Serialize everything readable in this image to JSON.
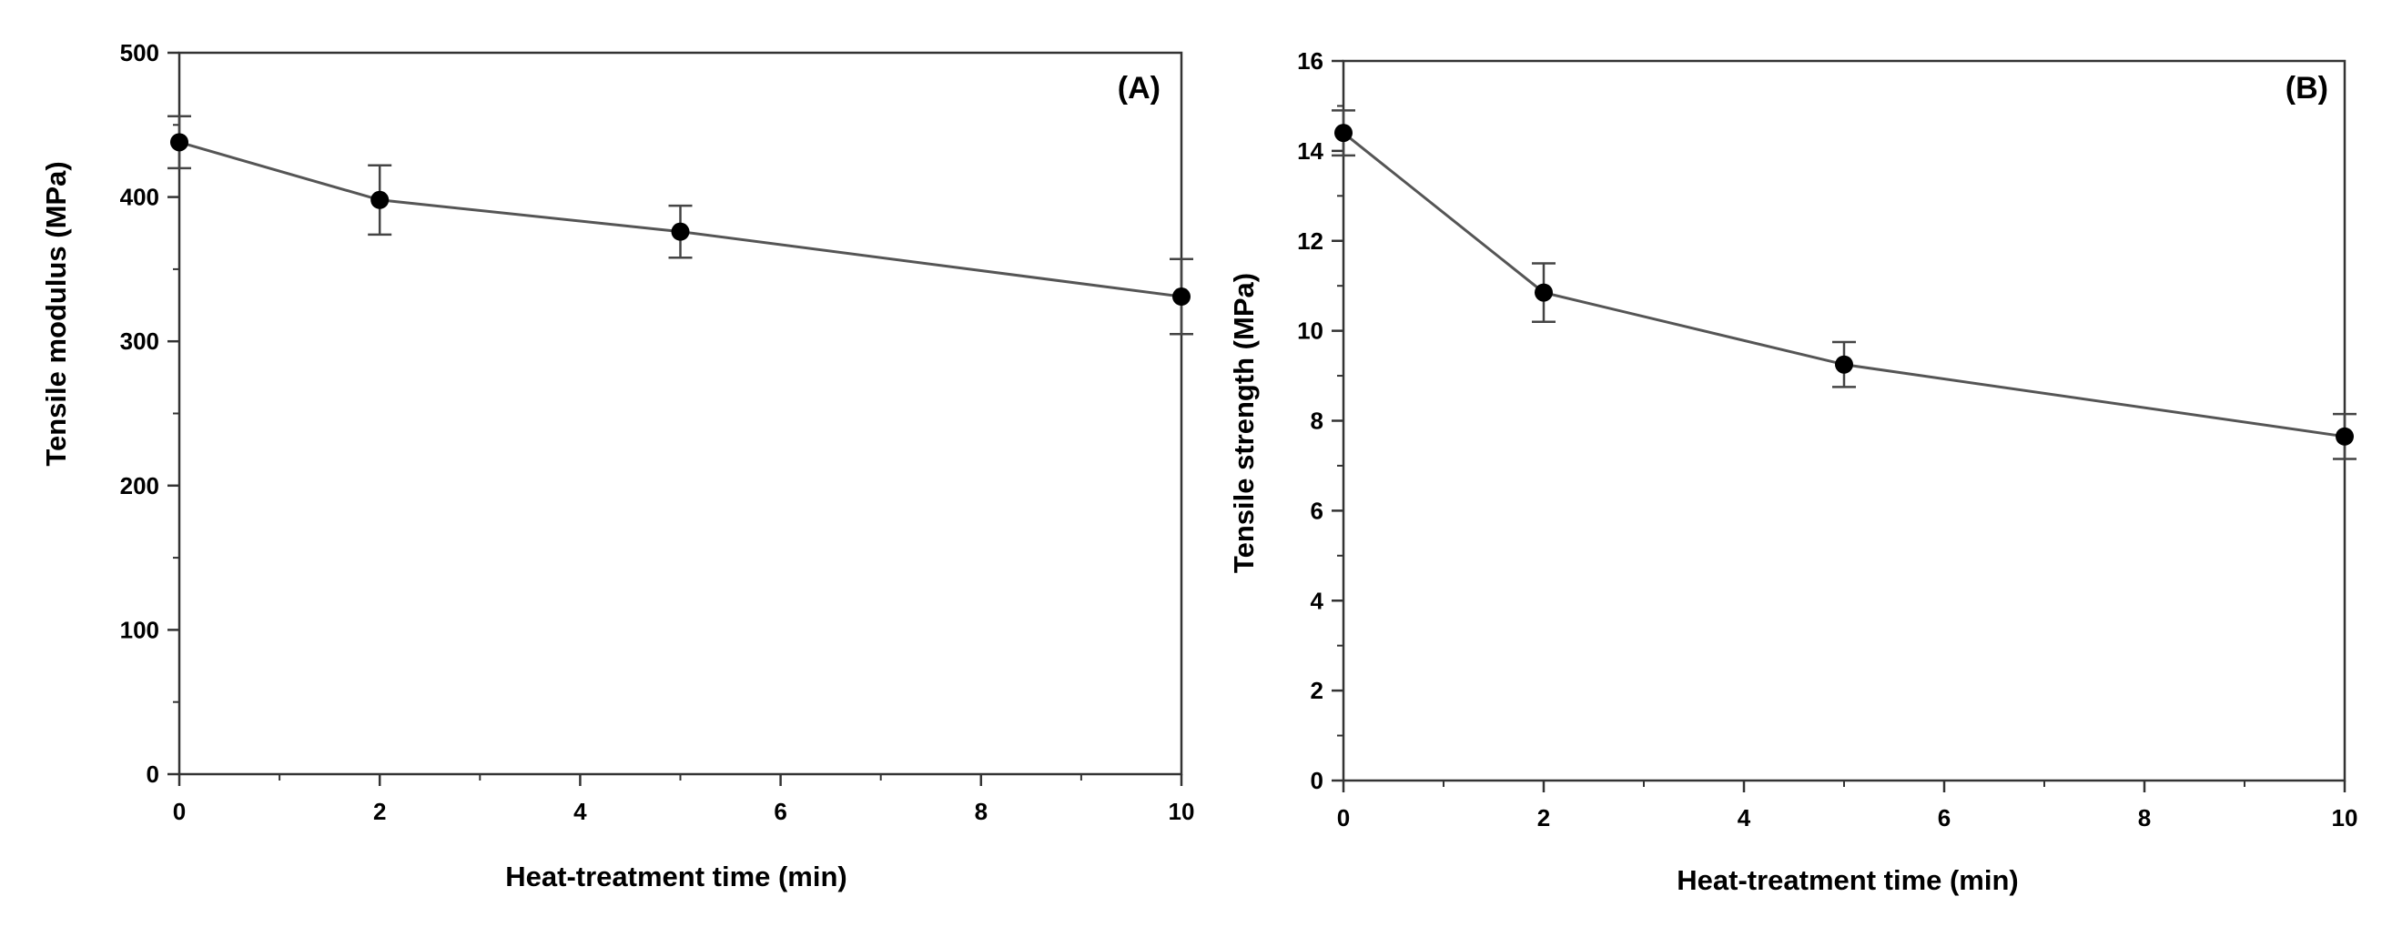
{
  "chart_data": [
    {
      "type": "line",
      "panel_label": "(A)",
      "xlabel": "Heat-treatment time (min)",
      "ylabel": "Tensile modulus (MPa)",
      "xlim": [
        0,
        10
      ],
      "ylim": [
        0,
        500
      ],
      "xticks": [
        0,
        2,
        4,
        6,
        8,
        10
      ],
      "yticks": [
        0,
        100,
        200,
        300,
        400,
        500
      ],
      "series": [
        {
          "name": "Tensile modulus",
          "x": [
            0,
            2,
            5,
            10
          ],
          "y": [
            438,
            398,
            376,
            331
          ],
          "error": [
            18,
            24,
            18,
            26
          ]
        }
      ]
    },
    {
      "type": "line",
      "panel_label": "(B)",
      "xlabel": "Heat-treatment time (min)",
      "ylabel": "Tensile strength (MPa)",
      "xlim": [
        0,
        10
      ],
      "ylim": [
        0,
        16
      ],
      "xticks": [
        0,
        2,
        4,
        6,
        8,
        10
      ],
      "yticks": [
        0,
        2,
        4,
        6,
        8,
        10,
        12,
        14,
        16
      ],
      "series": [
        {
          "name": "Tensile strength",
          "x": [
            0,
            2,
            5,
            10
          ],
          "y": [
            14.4,
            10.85,
            9.25,
            7.65
          ],
          "error": [
            0.5,
            0.65,
            0.5,
            0.5
          ]
        }
      ]
    }
  ]
}
